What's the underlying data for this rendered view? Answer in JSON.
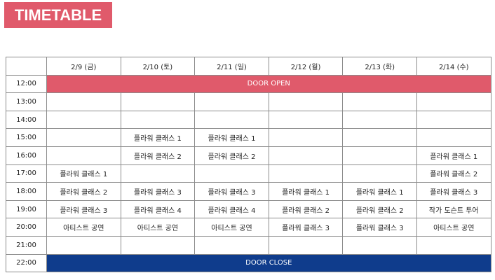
{
  "title": "TIMETABLE",
  "colors": {
    "accent_pink": "#e05a6b",
    "accent_navy": "#0f3c8c",
    "grid": "#8c8c8c"
  },
  "days": [
    "2/9 (금)",
    "2/10 (토)",
    "2/11 (일)",
    "2/12 (월)",
    "2/13 (화)",
    "2/14 (수)"
  ],
  "door_open": {
    "time": "12:00",
    "label": "DOOR OPEN"
  },
  "door_close": {
    "time": "22:00",
    "label": "DOOR CLOSE"
  },
  "rows": [
    {
      "time": "13:00",
      "cells": [
        "",
        "",
        "",
        "",
        "",
        ""
      ]
    },
    {
      "time": "14:00",
      "cells": [
        "",
        "",
        "",
        "",
        "",
        ""
      ]
    },
    {
      "time": "15:00",
      "cells": [
        "",
        "플라워 클래스 1",
        "플라워 클래스 1",
        "",
        "",
        ""
      ]
    },
    {
      "time": "16:00",
      "cells": [
        "",
        "플라워 클래스 2",
        "플라워 클래스 2",
        "",
        "",
        "플라워 클래스 1"
      ]
    },
    {
      "time": "17:00",
      "cells": [
        "플라워 클래스 1",
        "",
        "",
        "",
        "",
        "플라워 클래스 2"
      ]
    },
    {
      "time": "18:00",
      "cells": [
        "플라워 클래스 2",
        "플라워 클래스 3",
        "플라워 클래스 3",
        "플라워 클래스 1",
        "플라워 클래스 1",
        "플라워 클래스 3"
      ]
    },
    {
      "time": "19:00",
      "cells": [
        "플라워 클래스 3",
        "플라워 클래스 4",
        "플라워 클래스 4",
        "플라워 클래스 2",
        "플라워 클래스 2",
        "작가 도슨트 투어"
      ]
    },
    {
      "time": "20:00",
      "cells": [
        "아티스트 공연",
        "아티스트 공연",
        "아티스트 공연",
        "플라워 클래스 3",
        "플라워 클래스 3",
        "아티스트 공연"
      ]
    },
    {
      "time": "21:00",
      "cells": [
        "",
        "",
        "",
        "",
        "",
        ""
      ]
    }
  ]
}
